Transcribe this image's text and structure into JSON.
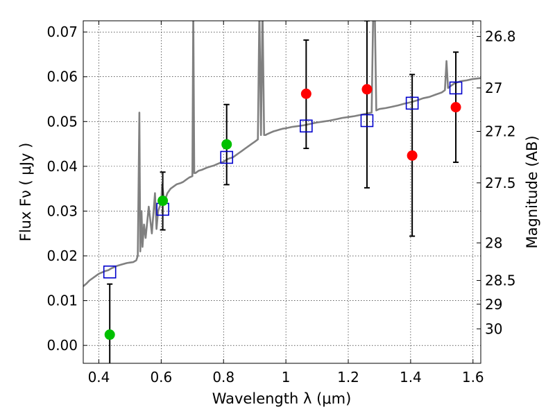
{
  "chart_data": {
    "type": "scatter",
    "xlabel": "Wavelength  λ (μm)",
    "ylabel": "Flux  Fν  ( μJy )",
    "y2label": "Magnitude (AB)",
    "xlim": [
      0.35,
      1.625
    ],
    "ylim": [
      -0.004,
      0.0725
    ],
    "grid": true,
    "x_ticks": [
      {
        "value": 0.4,
        "label": "0.4"
      },
      {
        "value": 0.6,
        "label": "0.6"
      },
      {
        "value": 0.8,
        "label": "0.8"
      },
      {
        "value": 1.0,
        "label": "1"
      },
      {
        "value": 1.2,
        "label": "1.2"
      },
      {
        "value": 1.4,
        "label": "1.4"
      },
      {
        "value": 1.6,
        "label": "1.6"
      }
    ],
    "y_ticks": [
      {
        "value": 0.0,
        "label": "0.00"
      },
      {
        "value": 0.01,
        "label": "0.01"
      },
      {
        "value": 0.02,
        "label": "0.02"
      },
      {
        "value": 0.03,
        "label": "0.03"
      },
      {
        "value": 0.04,
        "label": "0.04"
      },
      {
        "value": 0.05,
        "label": "0.05"
      },
      {
        "value": 0.06,
        "label": "0.06"
      },
      {
        "value": 0.07,
        "label": "0.07"
      }
    ],
    "mag_ticks": [
      {
        "flux": 0.069,
        "label": "26.8"
      },
      {
        "flux": 0.0575,
        "label": "27"
      },
      {
        "flux": 0.0478,
        "label": "27.2"
      },
      {
        "flux": 0.0363,
        "label": "27.5"
      },
      {
        "flux": 0.0229,
        "label": "28"
      },
      {
        "flux": 0.0145,
        "label": "28.5"
      },
      {
        "flux": 0.0092,
        "label": "29"
      },
      {
        "flux": 0.0037,
        "label": "30"
      }
    ],
    "series": [
      {
        "kind": "model_sed",
        "color": "#808080",
        "x": [
          0.35,
          0.36,
          0.37,
          0.38,
          0.39,
          0.4,
          0.41,
          0.42,
          0.43,
          0.44,
          0.45,
          0.46,
          0.47,
          0.48,
          0.49,
          0.5,
          0.51,
          0.52,
          0.525,
          0.53,
          0.533,
          0.537,
          0.54,
          0.545,
          0.55,
          0.56,
          0.57,
          0.58,
          0.585,
          0.59,
          0.6,
          0.603,
          0.61,
          0.62,
          0.63,
          0.64,
          0.65,
          0.66,
          0.67,
          0.68,
          0.69,
          0.7,
          0.703,
          0.706,
          0.71,
          0.72,
          0.73,
          0.74,
          0.75,
          0.76,
          0.77,
          0.78,
          0.79,
          0.8,
          0.81,
          0.82,
          0.83,
          0.84,
          0.85,
          0.86,
          0.87,
          0.88,
          0.89,
          0.9,
          0.91,
          0.915,
          0.92,
          0.925,
          0.93,
          0.935,
          0.94,
          0.95,
          0.96,
          0.97,
          0.98,
          0.99,
          1.0,
          1.02,
          1.04,
          1.06,
          1.08,
          1.1,
          1.12,
          1.14,
          1.16,
          1.18,
          1.2,
          1.22,
          1.24,
          1.26,
          1.275,
          1.28,
          1.285,
          1.29,
          1.3,
          1.32,
          1.34,
          1.36,
          1.38,
          1.4,
          1.42,
          1.44,
          1.46,
          1.48,
          1.5,
          1.51,
          1.515,
          1.52,
          1.53,
          1.54,
          1.56,
          1.58,
          1.6,
          1.625
        ],
        "y": [
          0.0132,
          0.0138,
          0.0145,
          0.015,
          0.0155,
          0.016,
          0.0163,
          0.0166,
          0.0168,
          0.0172,
          0.0175,
          0.0178,
          0.018,
          0.0182,
          0.0184,
          0.0185,
          0.0186,
          0.019,
          0.02,
          0.052,
          0.021,
          0.03,
          0.022,
          0.027,
          0.024,
          0.031,
          0.025,
          0.034,
          0.026,
          0.03,
          0.032,
          0.036,
          0.032,
          0.034,
          0.035,
          0.0355,
          0.036,
          0.0362,
          0.0365,
          0.037,
          0.0375,
          0.0378,
          0.075,
          0.0385,
          0.0385,
          0.039,
          0.0392,
          0.0395,
          0.0398,
          0.04,
          0.0402,
          0.0405,
          0.0408,
          0.041,
          0.0415,
          0.0418,
          0.042,
          0.0425,
          0.043,
          0.0435,
          0.044,
          0.0445,
          0.045,
          0.0455,
          0.046,
          0.075,
          0.047,
          0.075,
          0.047,
          0.047,
          0.0472,
          0.0475,
          0.0478,
          0.048,
          0.0482,
          0.0484,
          0.0485,
          0.0488,
          0.049,
          0.0492,
          0.0495,
          0.0498,
          0.05,
          0.0502,
          0.0505,
          0.0508,
          0.051,
          0.0512,
          0.0515,
          0.0518,
          0.052,
          0.075,
          0.075,
          0.0525,
          0.0528,
          0.053,
          0.0533,
          0.0536,
          0.054,
          0.0543,
          0.0547,
          0.0552,
          0.0555,
          0.056,
          0.0565,
          0.057,
          0.0635,
          0.0575,
          0.058,
          0.0585,
          0.059,
          0.0592,
          0.0595,
          0.0597
        ]
      },
      {
        "kind": "model_photometry",
        "marker": "open-square",
        "color": "#0000cc",
        "x": [
          0.435,
          0.605,
          0.81,
          1.065,
          1.26,
          1.405,
          1.545
        ],
        "y": [
          0.0164,
          0.0304,
          0.042,
          0.049,
          0.0502,
          0.0541,
          0.0575
        ]
      },
      {
        "kind": "detections",
        "marker": "filled-circle",
        "color": "#00c000",
        "x": [
          0.435,
          0.605,
          0.81
        ],
        "y": [
          0.0024,
          0.0323,
          0.0449
        ],
        "err_low": [
          -0.0045,
          0.0258,
          0.0359
        ],
        "err_high": [
          0.0137,
          0.0387,
          0.0538
        ]
      },
      {
        "kind": "non_detections",
        "marker": "filled-circle",
        "color": "#ff0000",
        "x": [
          1.065,
          1.26,
          1.405,
          1.545
        ],
        "y": [
          0.0562,
          0.0572,
          0.0424,
          0.0532
        ],
        "err_low": [
          0.044,
          0.0352,
          0.0244,
          0.0409
        ],
        "err_high": [
          0.0682,
          0.0725,
          0.0605,
          0.0655
        ]
      }
    ]
  }
}
